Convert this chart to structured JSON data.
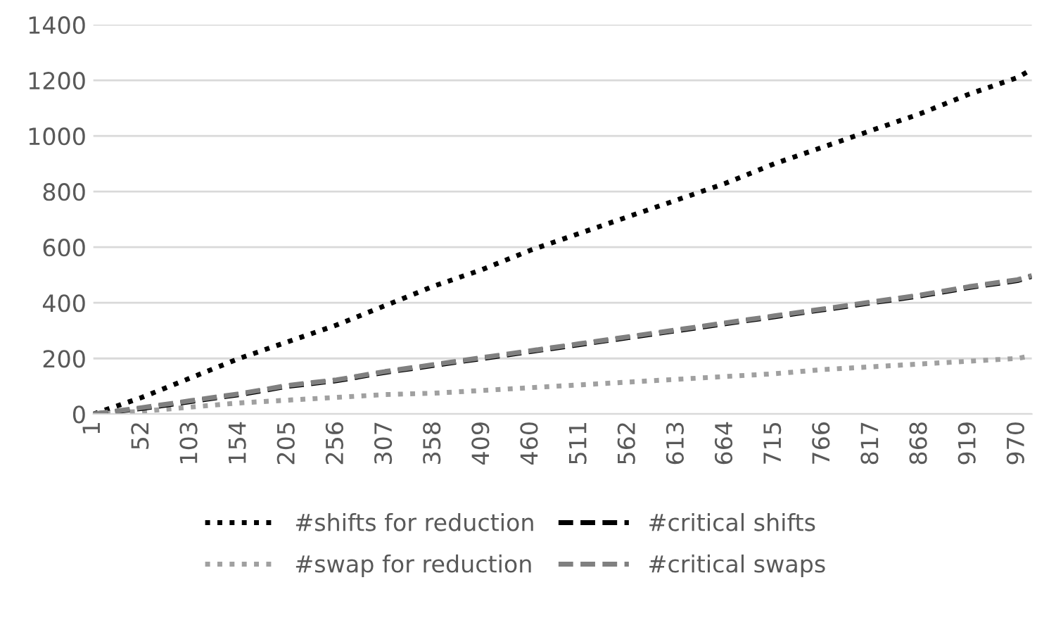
{
  "chart_data": {
    "type": "line",
    "x": [
      1,
      52,
      103,
      154,
      205,
      256,
      307,
      358,
      409,
      460,
      511,
      562,
      613,
      664,
      715,
      766,
      817,
      868,
      919,
      970,
      985
    ],
    "series": [
      {
        "name": "#shifts for reduction",
        "color": "#000000",
        "line_style": "dotted",
        "values": [
          0,
          60,
          130,
          200,
          260,
          320,
          390,
          460,
          520,
          590,
          650,
          710,
          770,
          830,
          900,
          960,
          1020,
          1080,
          1150,
          1210,
          1240
        ]
      },
      {
        "name": "#swap for reduction",
        "color": "#a0a0a0",
        "line_style": "dotted",
        "values": [
          0,
          10,
          25,
          40,
          50,
          60,
          70,
          75,
          85,
          95,
          105,
          115,
          125,
          135,
          145,
          160,
          170,
          180,
          190,
          200,
          210
        ]
      },
      {
        "name": "#critical shifts",
        "color": "#000000",
        "line_style": "dashed",
        "values": [
          0,
          20,
          45,
          70,
          100,
          120,
          150,
          175,
          200,
          225,
          250,
          275,
          300,
          325,
          350,
          375,
          400,
          425,
          455,
          480,
          495
        ]
      },
      {
        "name": "#critical swaps",
        "color": "#808080",
        "line_style": "dashed",
        "values": [
          0,
          23,
          48,
          73,
          103,
          123,
          153,
          178,
          203,
          228,
          253,
          278,
          303,
          328,
          353,
          378,
          403,
          428,
          458,
          483,
          498
        ]
      }
    ],
    "xlim": [
      1,
      985
    ],
    "xticks": [
      1,
      52,
      103,
      154,
      205,
      256,
      307,
      358,
      409,
      460,
      511,
      562,
      613,
      664,
      715,
      766,
      817,
      868,
      919,
      970
    ],
    "ylim": [
      0,
      1400
    ],
    "yticks": [
      0,
      200,
      400,
      600,
      800,
      1000,
      1200,
      1400
    ],
    "grid": "y",
    "legend": "bottom",
    "marker": "none"
  }
}
